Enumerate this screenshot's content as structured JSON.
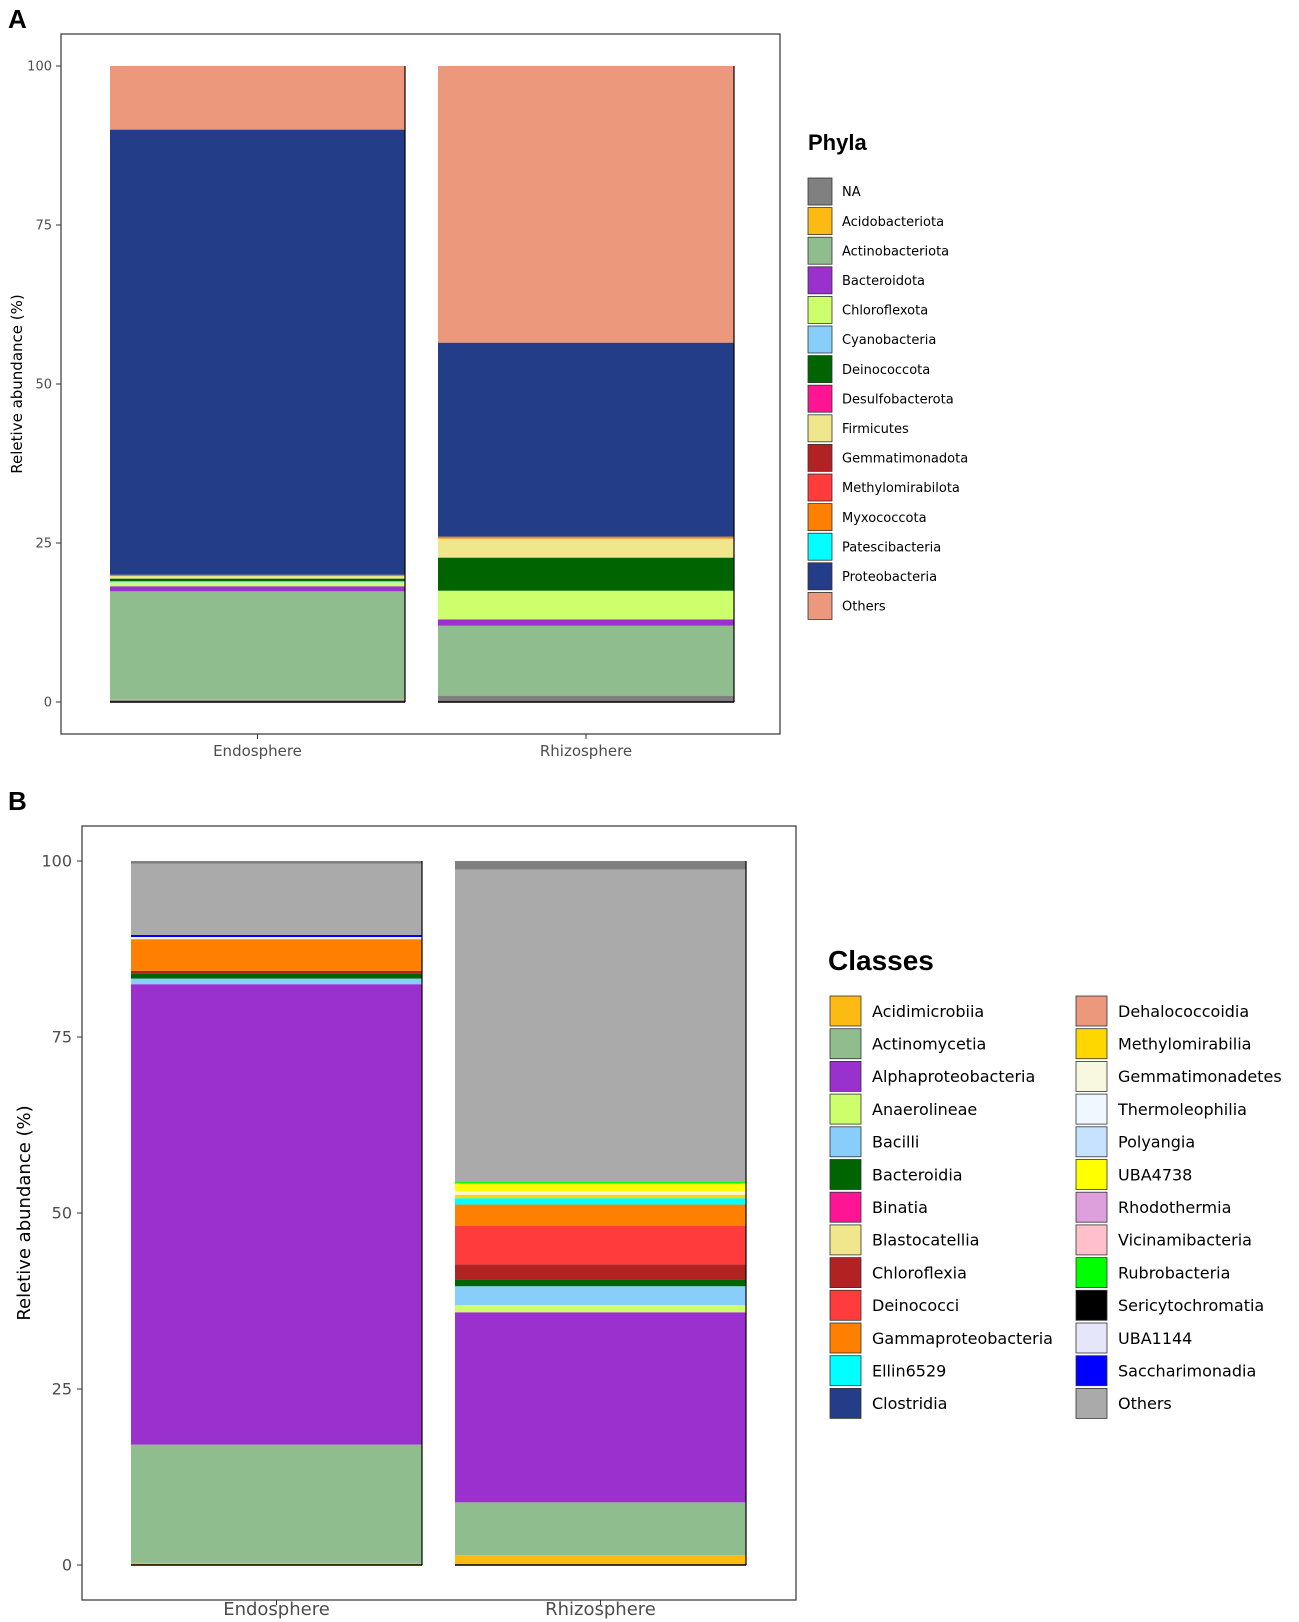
{
  "chart_data": [
    {
      "panel": "A",
      "type": "bar",
      "stacked": true,
      "categories": [
        "Endosphere",
        "Rhizosphere"
      ],
      "ylabel": "Reletive abundance (%)",
      "xlabel": "",
      "ylim": [
        0,
        100
      ],
      "yticks": [
        0,
        25,
        50,
        75,
        100
      ],
      "grid": false,
      "legend_title": "Phyla",
      "legend_position": "right",
      "legend_columns": 1,
      "series": [
        {
          "name": "NA",
          "color": "#808080",
          "values": [
            0.3,
            1.0
          ]
        },
        {
          "name": "Acidobacteriota",
          "color": "#FDBA12",
          "values": [
            0.1,
            0.0
          ]
        },
        {
          "name": "Actinobacteriota",
          "color": "#8FBD8E",
          "values": [
            17.0,
            11.0
          ]
        },
        {
          "name": "Bacteroidota",
          "color": "#9A31CF",
          "values": [
            0.8,
            1.0
          ]
        },
        {
          "name": "Chloroflexota",
          "color": "#CCFF6B",
          "values": [
            0.6,
            4.5
          ]
        },
        {
          "name": "Cyanobacteria",
          "color": "#87CEFA",
          "values": [
            0.2,
            0.0
          ]
        },
        {
          "name": "Deinococcota",
          "color": "#006400",
          "values": [
            0.4,
            5.2
          ]
        },
        {
          "name": "Desulfobacterota",
          "color": "#FF1493",
          "values": [
            0.0,
            0.0
          ]
        },
        {
          "name": "Firmicutes",
          "color": "#F0E68C",
          "values": [
            0.4,
            3.0
          ]
        },
        {
          "name": "Gemmatimonadota",
          "color": "#B22222",
          "values": [
            0.0,
            0.0
          ]
        },
        {
          "name": "Methylomirabilota",
          "color": "#FF3B3B",
          "values": [
            0.0,
            0.0
          ]
        },
        {
          "name": "Myxococcota",
          "color": "#FF7F00",
          "values": [
            0.2,
            0.3
          ]
        },
        {
          "name": "Patescibacteria",
          "color": "#00FFFF",
          "values": [
            0.0,
            0.0
          ]
        },
        {
          "name": "Proteobacteria",
          "color": "#233D88",
          "values": [
            70.0,
            30.5
          ]
        },
        {
          "name": "Others",
          "color": "#EC987C",
          "values": [
            10.0,
            43.5
          ]
        }
      ]
    },
    {
      "panel": "B",
      "type": "bar",
      "stacked": true,
      "categories": [
        "Endosphere",
        "Rhizosphere"
      ],
      "ylabel": "Reletive abundance (%)",
      "xlabel": "",
      "ylim": [
        0,
        100
      ],
      "yticks": [
        0,
        25,
        50,
        75,
        100
      ],
      "grid": false,
      "legend_title": "Classes",
      "legend_position": "right",
      "legend_columns": 2,
      "series": [
        {
          "name": "Acidimicrobiia",
          "color": "#FDBA12",
          "values": [
            0.3,
            1.4
          ]
        },
        {
          "name": "Actinomycetia",
          "color": "#8FBD8E",
          "values": [
            16.8,
            7.5
          ]
        },
        {
          "name": "Alphaproteobacteria",
          "color": "#9A31CF",
          "values": [
            65.4,
            27.0
          ]
        },
        {
          "name": "Anaerolineae",
          "color": "#CCFF6B",
          "values": [
            0.0,
            1.0
          ]
        },
        {
          "name": "Bacilli",
          "color": "#87CEFA",
          "values": [
            0.8,
            2.7
          ]
        },
        {
          "name": "Bacteroidia",
          "color": "#006400",
          "values": [
            0.7,
            1.0
          ]
        },
        {
          "name": "Binatia",
          "color": "#FF1493",
          "values": [
            0.0,
            0.0
          ]
        },
        {
          "name": "Blastocatellia",
          "color": "#F0E68C",
          "values": [
            0.0,
            0.0
          ]
        },
        {
          "name": "Chloroflexia",
          "color": "#B22222",
          "values": [
            0.4,
            2.1
          ]
        },
        {
          "name": "Deinococci",
          "color": "#FF3B3B",
          "values": [
            0.0,
            5.5
          ]
        },
        {
          "name": "Gammaproteobacteria",
          "color": "#FF7F00",
          "values": [
            4.5,
            3.0
          ]
        },
        {
          "name": "Ellin6529",
          "color": "#00FFFF",
          "values": [
            0.0,
            0.9
          ]
        },
        {
          "name": "Clostridia",
          "color": "#233D88",
          "values": [
            0.0,
            0.0
          ]
        },
        {
          "name": "Dehalococcoidia",
          "color": "#EC987C",
          "values": [
            0.0,
            0.0
          ]
        },
        {
          "name": "Methylomirabilia",
          "color": "#FFD700",
          "values": [
            0.0,
            0.5
          ]
        },
        {
          "name": "Gemmatimonadetes",
          "color": "#F8F8E0",
          "values": [
            0.3,
            0.5
          ]
        },
        {
          "name": "Thermoleophilia",
          "color": "#F0F8FF",
          "values": [
            0.0,
            0.0
          ]
        },
        {
          "name": "Polyangia",
          "color": "#C6E2FF",
          "values": [
            0.0,
            0.0
          ]
        },
        {
          "name": "UBA4738",
          "color": "#FFFF00",
          "values": [
            0.0,
            1.1
          ]
        },
        {
          "name": "Rhodothermia",
          "color": "#DDA0DD",
          "values": [
            0.0,
            0.0
          ]
        },
        {
          "name": "Vicinamibacteria",
          "color": "#FFC0CB",
          "values": [
            0.0,
            0.0
          ]
        },
        {
          "name": "Rubrobacteria",
          "color": "#00FF00",
          "values": [
            0.0,
            0.2
          ]
        },
        {
          "name": "Sericytochromatia",
          "color": "#000000",
          "values": [
            0.0,
            0.0
          ]
        },
        {
          "name": "UBA1144",
          "color": "#E6E6FA",
          "values": [
            0.0,
            0.0
          ]
        },
        {
          "name": "Saccharimonadia",
          "color": "#0000FF",
          "values": [
            0.3,
            0.0
          ]
        },
        {
          "name": "Others",
          "color": "#AAAAAA",
          "values": [
            10.1,
            44.4
          ]
        },
        {
          "name": "NA",
          "color": "#808080",
          "values": [
            0.4,
            1.2
          ]
        }
      ]
    }
  ],
  "panels": {
    "a_label": "A",
    "b_label": "B"
  }
}
